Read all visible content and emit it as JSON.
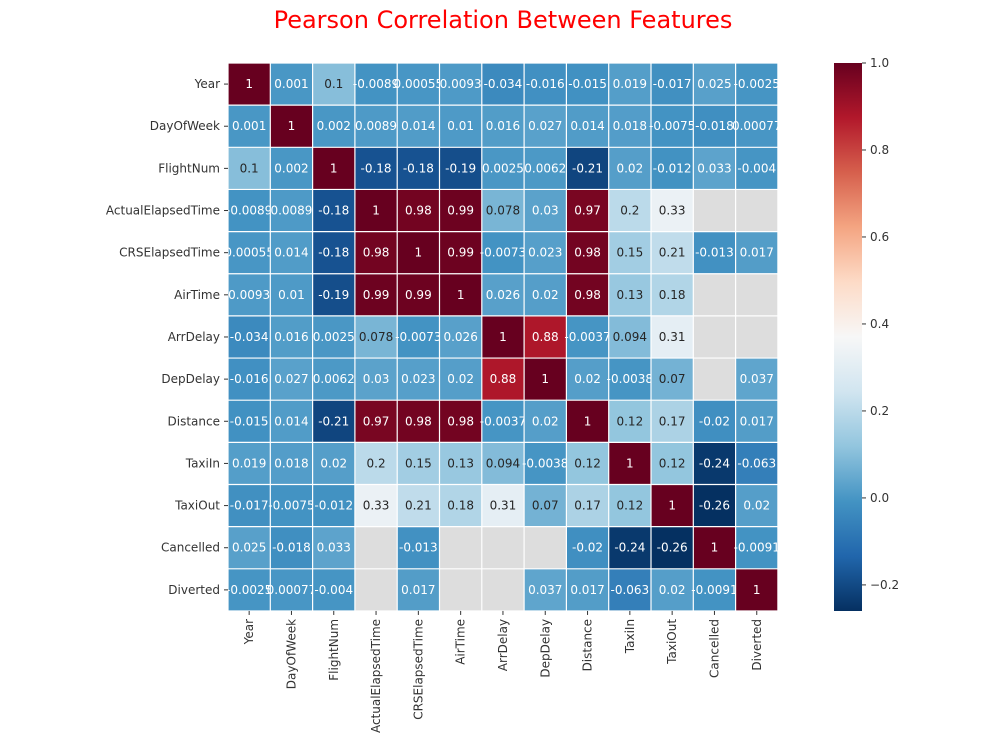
{
  "colors": {
    "title": "#ff0000",
    "nan_cell": "#dddddd",
    "gridline": "#ffffff",
    "light_text": "#ffffff",
    "dark_text": "#262626"
  },
  "chart_data": {
    "type": "heatmap",
    "title": "Pearson Correlation Between Features",
    "colormap": "RdBu_r",
    "vmin": -0.26,
    "vmax": 1.0,
    "grid": true,
    "legend_placement": "right",
    "colorbar_ticks": [
      "−0.2",
      "0.0",
      "0.2",
      "0.4",
      "0.6",
      "0.8",
      "1.0"
    ],
    "colorbar_tick_values": [
      -0.2,
      0.0,
      0.2,
      0.4,
      0.6,
      0.8,
      1.0
    ],
    "labels": [
      "Year",
      "DayOfWeek",
      "FlightNum",
      "ActualElapsedTime",
      "CRSElapsedTime",
      "AirTime",
      "ArrDelay",
      "DepDelay",
      "Distance",
      "TaxiIn",
      "TaxiOut",
      "Cancelled",
      "Diverted"
    ],
    "matrix": [
      [
        1,
        0.001,
        0.1,
        -0.0089,
        0.00055,
        0.0093,
        -0.034,
        -0.016,
        -0.015,
        0.019,
        -0.017,
        0.025,
        -0.0025
      ],
      [
        0.001,
        1,
        0.002,
        0.0089,
        0.014,
        0.01,
        0.016,
        0.027,
        0.014,
        0.018,
        -0.0075,
        -0.018,
        0.00077
      ],
      [
        0.1,
        0.002,
        1,
        -0.18,
        -0.18,
        -0.19,
        0.0025,
        0.0062,
        -0.21,
        0.02,
        -0.012,
        0.033,
        -0.004
      ],
      [
        -0.0089,
        0.0089,
        -0.18,
        1,
        0.98,
        0.99,
        0.078,
        0.03,
        0.97,
        0.2,
        0.33,
        null,
        null
      ],
      [
        0.00055,
        0.014,
        -0.18,
        0.98,
        1,
        0.99,
        -0.0073,
        0.023,
        0.98,
        0.15,
        0.21,
        -0.013,
        0.017
      ],
      [
        0.0093,
        0.01,
        -0.19,
        0.99,
        0.99,
        1,
        0.026,
        0.02,
        0.98,
        0.13,
        0.18,
        null,
        null
      ],
      [
        -0.034,
        0.016,
        0.0025,
        0.078,
        -0.0073,
        0.026,
        1,
        0.88,
        -0.0037,
        0.094,
        0.31,
        null,
        null
      ],
      [
        -0.016,
        0.027,
        0.0062,
        0.03,
        0.023,
        0.02,
        0.88,
        1,
        0.02,
        -0.0038,
        0.07,
        null,
        0.037
      ],
      [
        -0.015,
        0.014,
        -0.21,
        0.97,
        0.98,
        0.98,
        -0.0037,
        0.02,
        1,
        0.12,
        0.17,
        -0.02,
        0.017
      ],
      [
        0.019,
        0.018,
        0.02,
        0.2,
        0.15,
        0.13,
        0.094,
        -0.0038,
        0.12,
        1,
        0.12,
        -0.24,
        -0.063
      ],
      [
        -0.017,
        -0.0075,
        -0.012,
        0.33,
        0.21,
        0.18,
        0.31,
        0.07,
        0.17,
        0.12,
        1,
        -0.26,
        0.02
      ],
      [
        0.025,
        -0.018,
        0.033,
        null,
        -0.013,
        null,
        null,
        null,
        -0.02,
        -0.24,
        -0.26,
        1,
        -0.0091
      ],
      [
        -0.0025,
        0.00077,
        -0.004,
        null,
        0.017,
        null,
        null,
        0.037,
        0.017,
        -0.063,
        0.02,
        -0.0091,
        1
      ]
    ],
    "cell_text": [
      [
        "1",
        "0.001",
        "0.1",
        "-0.0089",
        "0.00055",
        "0.0093",
        "-0.034",
        "-0.016",
        "-0.015",
        "0.019",
        "-0.017",
        "0.025",
        "-0.0025"
      ],
      [
        "0.001",
        "1",
        "0.002",
        "0.0089",
        "0.014",
        "0.01",
        "0.016",
        "0.027",
        "0.014",
        "0.018",
        "-0.0075",
        "-0.018",
        "0.00077"
      ],
      [
        "0.1",
        "0.002",
        "1",
        "-0.18",
        "-0.18",
        "-0.19",
        "0.0025",
        "0.0062",
        "-0.21",
        "0.02",
        "-0.012",
        "0.033",
        "-0.004"
      ],
      [
        "-0.0089",
        "0.0089",
        "-0.18",
        "1",
        "0.98",
        "0.99",
        "0.078",
        "0.03",
        "0.97",
        "0.2",
        "0.33",
        "",
        ""
      ],
      [
        "0.00055",
        "0.014",
        "-0.18",
        "0.98",
        "1",
        "0.99",
        "-0.0073",
        "0.023",
        "0.98",
        "0.15",
        "0.21",
        "-0.013",
        "0.017"
      ],
      [
        "0.0093",
        "0.01",
        "-0.19",
        "0.99",
        "0.99",
        "1",
        "0.026",
        "0.02",
        "0.98",
        "0.13",
        "0.18",
        "",
        ""
      ],
      [
        "-0.034",
        "0.016",
        "0.0025",
        "0.078",
        "-0.0073",
        "0.026",
        "1",
        "0.88",
        "-0.0037",
        "0.094",
        "0.31",
        "",
        ""
      ],
      [
        "-0.016",
        "0.027",
        "0.0062",
        "0.03",
        "0.023",
        "0.02",
        "0.88",
        "1",
        "0.02",
        "-0.0038",
        "0.07",
        "",
        "0.037"
      ],
      [
        "-0.015",
        "0.014",
        "-0.21",
        "0.97",
        "0.98",
        "0.98",
        "-0.0037",
        "0.02",
        "1",
        "0.12",
        "0.17",
        "-0.02",
        "0.017"
      ],
      [
        "0.019",
        "0.018",
        "0.02",
        "0.2",
        "0.15",
        "0.13",
        "0.094",
        "-0.0038",
        "0.12",
        "1",
        "0.12",
        "-0.24",
        "-0.063"
      ],
      [
        "-0.017",
        "-0.0075",
        "-0.012",
        "0.33",
        "0.21",
        "0.18",
        "0.31",
        "0.07",
        "0.17",
        "0.12",
        "1",
        "-0.26",
        "0.02"
      ],
      [
        "0.025",
        "-0.018",
        "0.033",
        "",
        "-0.013",
        "",
        "",
        "",
        "-0.02",
        "-0.24",
        "-0.26",
        "1",
        "-0.0091"
      ],
      [
        "-0.0025",
        "0.00077",
        "-0.004",
        "",
        "0.017",
        "",
        "",
        "0.037",
        "0.017",
        "-0.063",
        "0.02",
        "-0.0091",
        "1"
      ]
    ]
  }
}
